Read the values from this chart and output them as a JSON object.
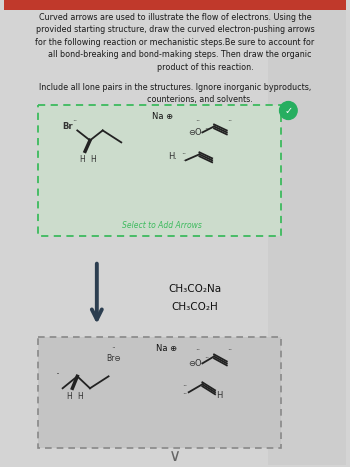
{
  "bg_color": "#d4d4d4",
  "header_bg": "#c0392b",
  "body_bg": "#d0d0d0",
  "text_color": "#1a1a1a",
  "title_lines": [
    "Curved arrows are used to illustrate the flow of electrons. Using the",
    "provided starting structure, draw the curved electron-pushing arrows",
    "for the following reaction or mechanistic steps.Be sure to account for",
    "all bond-breaking and bond-making steps. Then draw the organic",
    "product of this reaction."
  ],
  "subtitle_lines": [
    "Include all lone pairs in the structures. Ignore inorganic byproducts,",
    "counterions, and solvents."
  ],
  "reagent1": "CH₃CO₂Na",
  "reagent2": "CH₃CO₂H",
  "checkmark_color": "#27ae60",
  "box1_border_color": "#3dba5e",
  "box1_fill_color": "#ccdccc",
  "box2_border_color": "#888888",
  "box2_fill_color": "#c4c4c4",
  "arrow_color": "#2c3e50",
  "na_plus": "Na ⊕",
  "select_label": "Select to Add Arrows",
  "select_label_color": "#3dba5e"
}
